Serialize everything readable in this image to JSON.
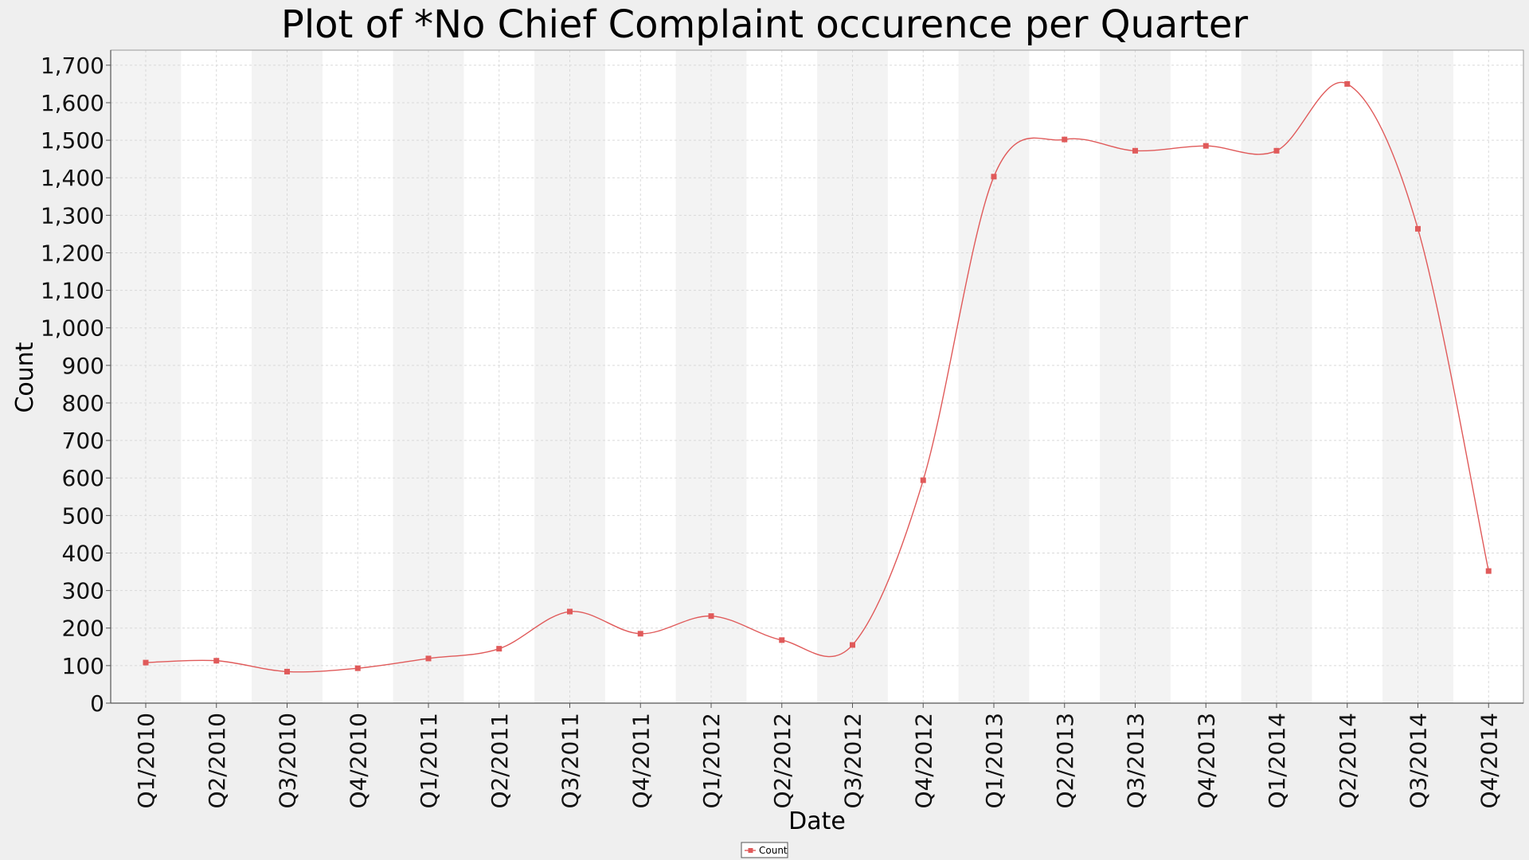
{
  "chart_data": {
    "type": "line",
    "title": "Plot of *No Chief Complaint occurence per Quarter",
    "xlabel": "Date",
    "ylabel": "Count",
    "ylim": [
      0,
      1740
    ],
    "y_ticks": [
      0,
      100,
      200,
      300,
      400,
      500,
      600,
      700,
      800,
      900,
      1000,
      1100,
      1200,
      1300,
      1400,
      1500,
      1600,
      1700
    ],
    "categories": [
      "Q1/2010",
      "Q2/2010",
      "Q3/2010",
      "Q4/2010",
      "Q1/2011",
      "Q2/2011",
      "Q3/2011",
      "Q4/2011",
      "Q1/2012",
      "Q2/2012",
      "Q3/2012",
      "Q4/2012",
      "Q1/2013",
      "Q2/2013",
      "Q3/2013",
      "Q4/2013",
      "Q1/2014",
      "Q2/2014",
      "Q3/2014",
      "Q4/2014"
    ],
    "series": [
      {
        "name": "Count",
        "color": "#e05a5a",
        "values": [
          108,
          113,
          84,
          93,
          119,
          145,
          244,
          185,
          232,
          168,
          155,
          594,
          1403,
          1502,
          1472,
          1485,
          1472,
          1650,
          1264,
          352
        ]
      }
    ],
    "grid": true,
    "alternating_bands": true,
    "legend": "bottom-center",
    "colors": {
      "background": "#efefef",
      "plot_background": "#ffffff",
      "band": "#f3f3f3",
      "grid": "#d9d9d9",
      "line": "#e05a5a"
    }
  }
}
